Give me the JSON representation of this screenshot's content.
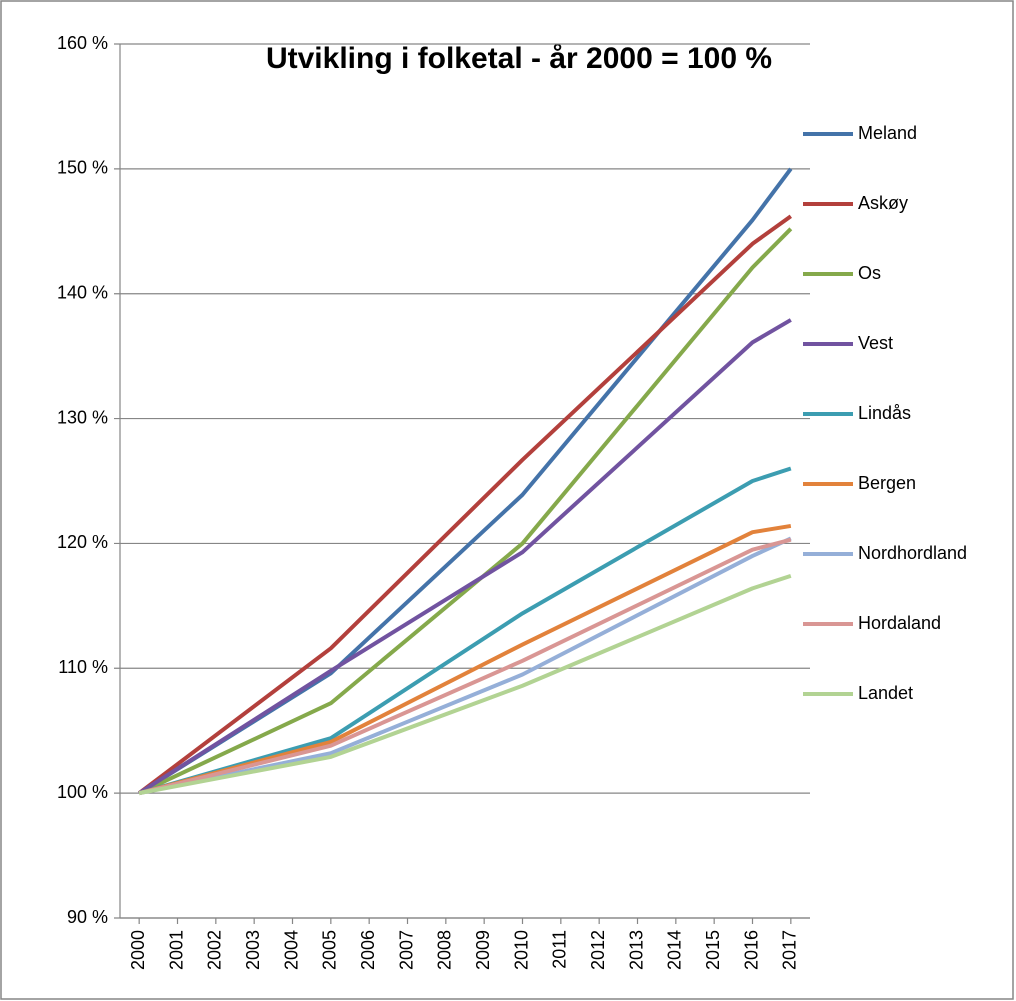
{
  "chart_data": {
    "type": "line",
    "title": "Utvikling i folketal - år 2000 = 100 %",
    "x": [
      2000,
      2005,
      2010,
      2016,
      2017
    ],
    "xlim": [
      1999.5,
      2017.5
    ],
    "xticks": [
      2000,
      2001,
      2002,
      2003,
      2004,
      2005,
      2006,
      2007,
      2008,
      2009,
      2010,
      2011,
      2012,
      2013,
      2014,
      2015,
      2016,
      2017
    ],
    "ylim": [
      90,
      160
    ],
    "yticks": [
      {
        "value": 90,
        "label": "90 %"
      },
      {
        "value": 100,
        "label": "100 %"
      },
      {
        "value": 110,
        "label": "110 %"
      },
      {
        "value": 120,
        "label": "120 %"
      },
      {
        "value": 130,
        "label": "130 %"
      },
      {
        "value": 140,
        "label": "140 %"
      },
      {
        "value": 150,
        "label": "150 %"
      },
      {
        "value": 160,
        "label": "160 %"
      }
    ],
    "grid": true,
    "legend": "right",
    "series": [
      {
        "name": "Meland",
        "color": "#4473a9",
        "values": [
          100,
          109.6,
          123.9,
          145.9,
          150
        ]
      },
      {
        "name": "Askøy",
        "color": "#b3403c",
        "values": [
          100,
          111.6,
          126.7,
          144,
          146.2
        ]
      },
      {
        "name": "Os",
        "color": "#85a94b",
        "values": [
          100,
          107.2,
          120,
          142.1,
          145.2
        ]
      },
      {
        "name": "Vest",
        "color": "#7153a0",
        "values": [
          100,
          109.8,
          119.3,
          136.1,
          137.9
        ]
      },
      {
        "name": "Lindås",
        "color": "#3c9db1",
        "values": [
          100,
          104.4,
          114.4,
          125,
          126
        ]
      },
      {
        "name": "Bergen",
        "color": "#e2823b",
        "values": [
          100,
          104.1,
          111.9,
          120.9,
          121.4
        ]
      },
      {
        "name": "Nordhordland",
        "color": "#95afd8",
        "values": [
          100,
          103.2,
          109.5,
          119,
          120.4
        ]
      },
      {
        "name": "Hordaland",
        "color": "#d99694",
        "values": [
          100,
          103.8,
          110.6,
          119.5,
          120.3
        ]
      },
      {
        "name": "Landet",
        "color": "#b2d393",
        "values": [
          100,
          102.9,
          108.6,
          116.4,
          117.4
        ]
      }
    ]
  }
}
